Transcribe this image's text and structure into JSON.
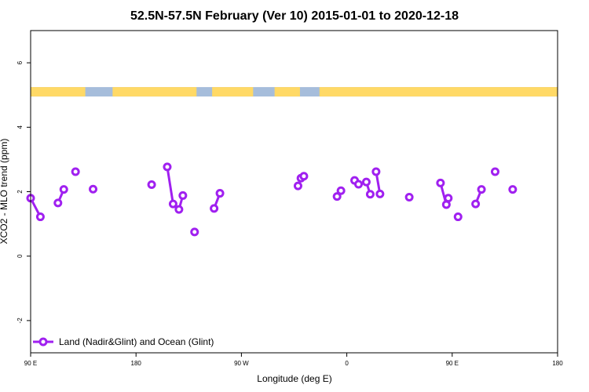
{
  "chart_data": {
    "type": "line",
    "title": "52.5N-57.5N February (Ver 10)   2015-01-01 to 2020-12-18",
    "xlabel": "Longitude (deg E)",
    "ylabel": "XCO2 - MLO trend (ppm)",
    "xlim": [
      -90,
      180
    ],
    "ylim": [
      -3,
      7
    ],
    "x_ticks": [
      {
        "value": -90,
        "label": "90 E"
      },
      {
        "value": -36,
        "label": "180"
      },
      {
        "value": 18,
        "label": "90 W"
      },
      {
        "value": 72,
        "label": "0"
      },
      {
        "value": 126,
        "label": "90 E"
      },
      {
        "value": 180,
        "label": "180"
      }
    ],
    "y_ticks": [
      {
        "value": -2,
        "label": "-2"
      },
      {
        "value": 0,
        "label": "0"
      },
      {
        "value": 2,
        "label": "2"
      },
      {
        "value": 4,
        "label": "4"
      },
      {
        "value": 6,
        "label": "6"
      }
    ],
    "land_ocean_band": {
      "y": 5.1,
      "land_color": "#FFD966",
      "ocean_color": "#A6BDDB",
      "land_ranges": [
        [
          -90,
          -62
        ],
        [
          -48,
          -5
        ],
        [
          3,
          24
        ],
        [
          35,
          48
        ],
        [
          58,
          181
        ]
      ]
    },
    "series": [
      {
        "name": "Land (Nadir&Glint) and Ocean (Glint)",
        "color": "#A020F0",
        "segments": [
          [
            [
              -90,
              1.8
            ],
            [
              -85,
              1.22
            ]
          ],
          [
            [
              -76,
              1.65
            ],
            [
              -73,
              2.07
            ]
          ],
          [
            [
              -67,
              2.62
            ]
          ],
          [
            [
              -58,
              2.08
            ]
          ],
          [
            [
              -28,
              2.22
            ]
          ],
          [
            [
              -20,
              2.77
            ],
            [
              -17,
              1.62
            ],
            [
              -14,
              1.45
            ],
            [
              -12,
              1.88
            ]
          ],
          [
            [
              -6,
              0.75
            ]
          ],
          [
            [
              4,
              1.48
            ],
            [
              7,
              1.95
            ]
          ],
          [
            [
              47,
              2.18
            ],
            [
              48.5,
              2.42
            ],
            [
              50,
              2.48
            ]
          ],
          [
            [
              67,
              1.85
            ],
            [
              69,
              2.03
            ]
          ],
          [
            [
              76,
              2.35
            ],
            [
              78,
              2.23
            ]
          ],
          [
            [
              82,
              2.3
            ],
            [
              84,
              1.92
            ]
          ],
          [
            [
              87,
              2.62
            ],
            [
              89,
              1.93
            ]
          ],
          [
            [
              104,
              1.83
            ]
          ],
          [
            [
              120,
              2.27
            ],
            [
              123,
              1.6
            ],
            [
              124,
              1.8
            ]
          ],
          [
            [
              129,
              1.22
            ]
          ],
          [
            [
              138,
              1.62
            ],
            [
              141,
              2.07
            ]
          ],
          [
            [
              148,
              2.62
            ]
          ],
          [
            [
              157,
              2.07
            ]
          ]
        ]
      }
    ],
    "legend": {
      "placement": "bottom-left",
      "label": "Land (Nadir&Glint) and Ocean (Glint)"
    }
  }
}
